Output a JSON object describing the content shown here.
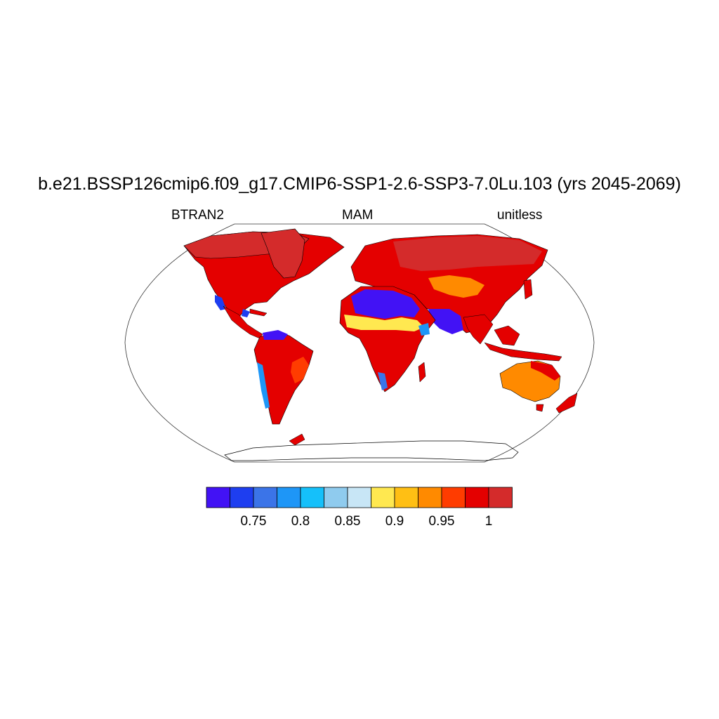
{
  "title": "b.e21.BSSP126cmip6.f09_g17.CMIP6-SSP1-2.6-SSP3-7.0Lu.103 (yrs 2045-2069)",
  "subtitle_left": "BTRAN2",
  "subtitle_center": "MAM",
  "subtitle_right": "unitless",
  "colorbar": {
    "colors": [
      "#4212f5",
      "#1e3ef0",
      "#3b74e8",
      "#1e96f7",
      "#15c0fa",
      "#8fcbee",
      "#c8e6f6",
      "#ffe850",
      "#ffbf14",
      "#ff8a00",
      "#ff3c00",
      "#e40000",
      "#d42b2b"
    ],
    "tick_labels": [
      "0.75",
      "0.8",
      "0.85",
      "0.9",
      "0.95",
      "1"
    ]
  },
  "chart_data": {
    "type": "heatmap",
    "variable": "BTRAN2",
    "season": "MAM",
    "units": "unitless",
    "projection": "Robinson",
    "levels": [
      0.725,
      0.75,
      0.775,
      0.8,
      0.825,
      0.85,
      0.875,
      0.9,
      0.925,
      0.95,
      0.975,
      1.0
    ],
    "dominant_value_range": [
      0.975,
      1.0
    ]
  }
}
